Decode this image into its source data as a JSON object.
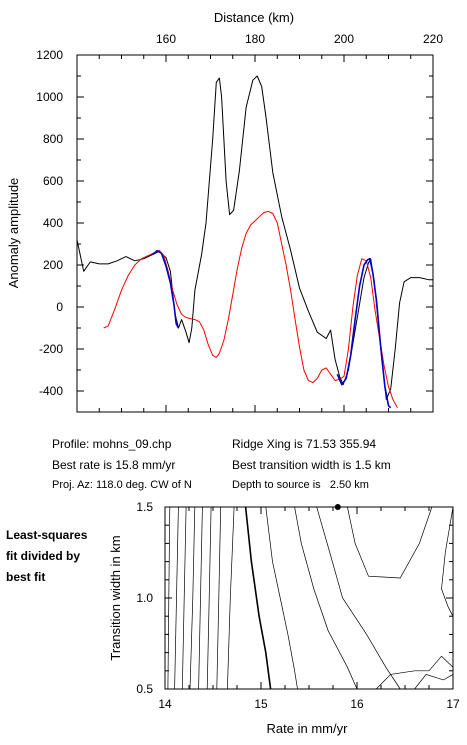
{
  "chart_data": [
    {
      "type": "line",
      "title": "",
      "xlabel": "Distance (km)",
      "ylabel": "Anomaly amplitude",
      "xlim": [
        140,
        220
      ],
      "ylim": [
        -500,
        1200
      ],
      "x_ticks": [
        160,
        180,
        200,
        220
      ],
      "y_ticks": [
        -400,
        -200,
        0,
        200,
        400,
        600,
        800,
        1000,
        1200
      ],
      "grid": false,
      "legend": "none",
      "series": [
        {
          "color": "#000000",
          "points": [
            [
              140,
              320
            ],
            [
              141.5,
              170
            ],
            [
              143,
              215
            ],
            [
              145,
              205
            ],
            [
              147,
              205
            ],
            [
              149,
              220
            ],
            [
              151,
              240
            ],
            [
              153,
              220
            ],
            [
              155,
              230
            ],
            [
              157,
              250
            ],
            [
              158.5,
              265
            ],
            [
              160,
              235
            ],
            [
              161,
              170
            ],
            [
              162,
              -30
            ],
            [
              162.8,
              -100
            ],
            [
              163.5,
              -60
            ],
            [
              164.5,
              -120
            ],
            [
              165.2,
              -170
            ],
            [
              165.8,
              -100
            ],
            [
              166.5,
              80
            ],
            [
              168,
              250
            ],
            [
              169,
              400
            ],
            [
              170.5,
              800
            ],
            [
              171.3,
              1070
            ],
            [
              172,
              1090
            ],
            [
              172.5,
              1000
            ],
            [
              173.5,
              600
            ],
            [
              174.3,
              440
            ],
            [
              175.2,
              460
            ],
            [
              176.5,
              650
            ],
            [
              178,
              950
            ],
            [
              179.5,
              1080
            ],
            [
              180.5,
              1100
            ],
            [
              181.5,
              1050
            ],
            [
              182.5,
              900
            ],
            [
              184,
              640
            ],
            [
              186,
              430
            ],
            [
              188,
              270
            ],
            [
              190,
              90
            ],
            [
              192,
              -20
            ],
            [
              194,
              -120
            ],
            [
              196,
              -150
            ],
            [
              197,
              -110
            ],
            [
              198,
              -250
            ],
            [
              199,
              -330
            ],
            [
              199.8,
              -370
            ],
            [
              201,
              -300
            ],
            [
              203,
              -50
            ],
            [
              204.5,
              140
            ],
            [
              205.5,
              210
            ],
            [
              206,
              230
            ],
            [
              206.8,
              120
            ],
            [
              207.5,
              -30
            ],
            [
              208.5,
              -250
            ],
            [
              209.5,
              -440
            ],
            [
              210.5,
              -390
            ],
            [
              211.5,
              -200
            ],
            [
              212.5,
              20
            ],
            [
              213.5,
              120
            ],
            [
              215,
              140
            ],
            [
              217,
              140
            ],
            [
              219,
              130
            ],
            [
              220,
              130
            ]
          ]
        },
        {
          "color": "#ff0000",
          "points": [
            [
              146,
              -100
            ],
            [
              147,
              -90
            ],
            [
              148.5,
              -10
            ],
            [
              150,
              80
            ],
            [
              151.5,
              150
            ],
            [
              153,
              200
            ],
            [
              154.5,
              230
            ],
            [
              156,
              245
            ],
            [
              157.5,
              260
            ],
            [
              158.5,
              270
            ],
            [
              159.5,
              245
            ],
            [
              160.5,
              170
            ],
            [
              161.5,
              80
            ],
            [
              162.5,
              10
            ],
            [
              163.5,
              -35
            ],
            [
              164.5,
              -50
            ],
            [
              165.5,
              -55
            ],
            [
              166.5,
              -60
            ],
            [
              167.5,
              -70
            ],
            [
              168.5,
              -110
            ],
            [
              169.5,
              -180
            ],
            [
              170.5,
              -230
            ],
            [
              171.3,
              -240
            ],
            [
              172,
              -220
            ],
            [
              173,
              -160
            ],
            [
              174,
              -60
            ],
            [
              175,
              60
            ],
            [
              176,
              180
            ],
            [
              177,
              280
            ],
            [
              178,
              350
            ],
            [
              179,
              390
            ],
            [
              180,
              410
            ],
            [
              181,
              430
            ],
            [
              182,
              450
            ],
            [
              183,
              455
            ],
            [
              184,
              445
            ],
            [
              185,
              400
            ],
            [
              186,
              300
            ],
            [
              187,
              200
            ],
            [
              188,
              80
            ],
            [
              189,
              -60
            ],
            [
              190,
              -190
            ],
            [
              191,
              -300
            ],
            [
              192,
              -350
            ],
            [
              193,
              -360
            ],
            [
              194,
              -340
            ],
            [
              195,
              -300
            ],
            [
              196,
              -290
            ],
            [
              197,
              -320
            ],
            [
              198,
              -350
            ],
            [
              199,
              -345
            ],
            [
              200,
              -330
            ],
            [
              201,
              -200
            ],
            [
              202,
              0
            ],
            [
              203,
              150
            ],
            [
              204,
              230
            ],
            [
              205,
              220
            ],
            [
              206,
              140
            ],
            [
              207,
              -20
            ],
            [
              208,
              -150
            ],
            [
              209,
              -280
            ],
            [
              210,
              -380
            ],
            [
              211,
              -440
            ],
            [
              212,
              -480
            ]
          ]
        },
        {
          "color": "#0000cc",
          "points": [
            [
              157,
              250
            ],
            [
              158,
              268
            ],
            [
              159,
              255
            ],
            [
              160,
              195
            ],
            [
              161,
              115
            ],
            [
              161.8,
              10
            ],
            [
              162.3,
              -80
            ],
            [
              162.8,
              -100
            ]
          ]
        },
        {
          "color": "#0000cc",
          "points": [
            [
              198.5,
              -320
            ],
            [
              199.5,
              -370
            ],
            [
              200.5,
              -340
            ],
            [
              201.5,
              -230
            ],
            [
              202.5,
              -60
            ],
            [
              203.5,
              100
            ],
            [
              204.5,
              200
            ],
            [
              205.3,
              225
            ],
            [
              205.8,
              230
            ],
            [
              206.5,
              160
            ],
            [
              207.3,
              30
            ],
            [
              208.2,
              -180
            ],
            [
              209.2,
              -380
            ],
            [
              210,
              -470
            ],
            [
              210.5,
              -480
            ]
          ]
        }
      ]
    },
    {
      "type": "contour",
      "xlabel": "Rate in mm/yr",
      "ylabel": "Transition width in km",
      "xlim": [
        14,
        17
      ],
      "ylim": [
        0.5,
        1.5
      ],
      "x_ticks": [
        14,
        15,
        16,
        17
      ],
      "y_ticks": [
        "0.5",
        "1.0",
        "1.5"
      ],
      "best_fit": {
        "rate": 15.8,
        "width": 1.5
      },
      "contours": [
        {
          "weight": 0.7,
          "points": [
            [
              14.05,
              1.5
            ],
            [
              14.04,
              1.0
            ],
            [
              14.03,
              0.5
            ]
          ]
        },
        {
          "weight": 0.7,
          "points": [
            [
              14.14,
              1.5
            ],
            [
              14.12,
              1.0
            ],
            [
              14.1,
              0.5
            ]
          ]
        },
        {
          "weight": 0.7,
          "points": [
            [
              14.22,
              1.5
            ],
            [
              14.2,
              1.0
            ],
            [
              14.18,
              0.5
            ]
          ]
        },
        {
          "weight": 0.7,
          "points": [
            [
              14.31,
              1.5
            ],
            [
              14.29,
              1.0
            ],
            [
              14.26,
              0.5
            ]
          ]
        },
        {
          "weight": 0.7,
          "points": [
            [
              14.39,
              1.5
            ],
            [
              14.37,
              1.0
            ],
            [
              14.35,
              0.5
            ]
          ]
        },
        {
          "weight": 0.7,
          "points": [
            [
              14.48,
              1.5
            ],
            [
              14.46,
              1.0
            ],
            [
              14.44,
              0.5
            ]
          ]
        },
        {
          "weight": 0.7,
          "points": [
            [
              14.58,
              1.5
            ],
            [
              14.56,
              1.0
            ],
            [
              14.54,
              0.5
            ]
          ]
        },
        {
          "weight": 0.7,
          "points": [
            [
              14.72,
              1.5
            ],
            [
              14.68,
              1.0
            ],
            [
              14.65,
              0.5
            ]
          ]
        },
        {
          "weight": 1.6,
          "points": [
            [
              14.84,
              1.5
            ],
            [
              14.9,
              1.2
            ],
            [
              14.98,
              0.9
            ],
            [
              15.05,
              0.7
            ],
            [
              15.1,
              0.5
            ]
          ]
        },
        {
          "weight": 0.7,
          "points": [
            [
              15.05,
              1.5
            ],
            [
              15.12,
              1.2
            ],
            [
              15.2,
              1.0
            ],
            [
              15.28,
              0.8
            ],
            [
              15.35,
              0.6
            ],
            [
              15.38,
              0.5
            ]
          ]
        },
        {
          "weight": 0.7,
          "points": [
            [
              15.35,
              1.5
            ],
            [
              15.42,
              1.3
            ],
            [
              15.55,
              1.05
            ],
            [
              15.7,
              0.82
            ],
            [
              15.9,
              0.62
            ],
            [
              16.0,
              0.5
            ]
          ]
        },
        {
          "weight": 0.7,
          "points": [
            [
              15.58,
              1.5
            ],
            [
              15.7,
              1.28
            ],
            [
              15.85,
              1.0
            ],
            [
              16.1,
              0.8
            ],
            [
              16.3,
              0.62
            ],
            [
              16.45,
              0.5
            ]
          ]
        },
        {
          "weight": 0.7,
          "points": [
            [
              15.9,
              1.5
            ],
            [
              15.98,
              1.3
            ],
            [
              16.12,
              1.12
            ],
            [
              16.45,
              1.11
            ],
            [
              16.65,
              1.3
            ],
            [
              16.78,
              1.5
            ]
          ]
        },
        {
          "weight": 0.7,
          "points": [
            [
              17.0,
              1.5
            ],
            [
              16.92,
              1.25
            ],
            [
              16.88,
              1.05
            ],
            [
              16.95,
              0.95
            ],
            [
              17.0,
              0.9
            ]
          ]
        },
        {
          "weight": 0.7,
          "points": [
            [
              16.2,
              0.5
            ],
            [
              16.35,
              0.58
            ],
            [
              16.6,
              0.6
            ],
            [
              16.75,
              0.6
            ],
            [
              16.88,
              0.68
            ],
            [
              17.0,
              0.62
            ]
          ]
        },
        {
          "weight": 0.7,
          "points": [
            [
              16.6,
              0.5
            ],
            [
              16.72,
              0.58
            ],
            [
              16.9,
              0.55
            ],
            [
              17.0,
              0.58
            ]
          ]
        }
      ]
    }
  ],
  "info": {
    "profile": "Profile: mohns_09.chp",
    "best_rate": "Best rate is 15.8 mm/yr",
    "proj_az": "Proj. Az: 118.0 deg. CW of N",
    "ridge_xing": "Ridge Xing is 71.53 355.94",
    "best_width": "Best transition width is 1.5 km",
    "depth": "Depth to source is   2.50 km"
  },
  "side_note": [
    "Least-squares",
    "fit divided by",
    "best fit"
  ]
}
